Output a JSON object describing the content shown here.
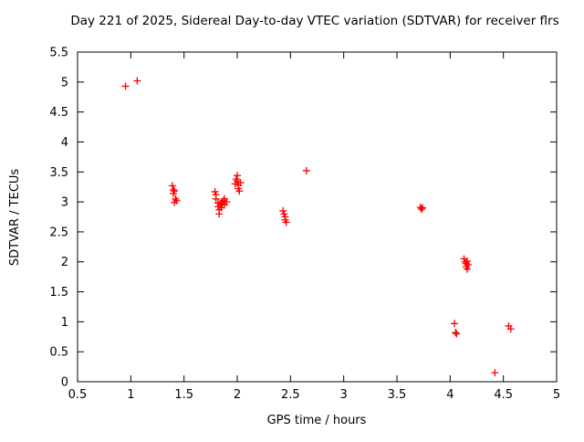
{
  "chart_data": {
    "type": "scatter",
    "title": "Day 221 of 2025, Sidereal Day-to-day VTEC variation (SDTVAR) for receiver flrs",
    "xlabel": "GPS time / hours",
    "ylabel": "SDTVAR / TECUs",
    "xlim": [
      0.5,
      5
    ],
    "ylim": [
      0,
      5.5
    ],
    "xticks": [
      0.5,
      1,
      1.5,
      2,
      2.5,
      3,
      3.5,
      4,
      4.5,
      5
    ],
    "xtick_labels": [
      "0.5",
      "1",
      "1.5",
      "2",
      "2.5",
      "3",
      "3.5",
      "4",
      "4.5",
      "5"
    ],
    "yticks": [
      0,
      0.5,
      1,
      1.5,
      2,
      2.5,
      3,
      3.5,
      4,
      4.5,
      5,
      5.5
    ],
    "ytick_labels": [
      "0",
      "0.5",
      "1",
      "1.5",
      "2",
      "2.5",
      "3",
      "3.5",
      "4",
      "4.5",
      "5",
      "5.5"
    ],
    "grid": false,
    "legend": "none",
    "marker": "plus",
    "marker_color": "#ff0000",
    "axis_color": "#000000",
    "background_color": "#ffffff",
    "series_name": "SDTVAR",
    "points": [
      [
        0.95,
        4.93
      ],
      [
        1.06,
        5.02
      ],
      [
        1.39,
        3.27
      ],
      [
        1.4,
        3.2
      ],
      [
        1.4,
        3.14
      ],
      [
        1.41,
        3.18
      ],
      [
        1.41,
        2.99
      ],
      [
        1.42,
        3.05
      ],
      [
        1.43,
        3.02
      ],
      [
        1.79,
        3.17
      ],
      [
        1.8,
        3.12
      ],
      [
        1.8,
        3.05
      ],
      [
        1.82,
        2.98
      ],
      [
        1.82,
        2.92
      ],
      [
        1.83,
        2.87
      ],
      [
        1.83,
        2.8
      ],
      [
        1.84,
        2.95
      ],
      [
        1.85,
        3.0
      ],
      [
        1.85,
        2.9
      ],
      [
        1.86,
        2.97
      ],
      [
        1.87,
        3.02
      ],
      [
        1.88,
        2.95
      ],
      [
        1.88,
        3.05
      ],
      [
        1.9,
        3.0
      ],
      [
        1.98,
        3.3
      ],
      [
        1.99,
        3.38
      ],
      [
        2.0,
        3.44
      ],
      [
        2.0,
        3.35
      ],
      [
        2.01,
        3.28
      ],
      [
        2.01,
        3.22
      ],
      [
        2.02,
        3.18
      ],
      [
        2.03,
        3.32
      ],
      [
        2.43,
        2.85
      ],
      [
        2.44,
        2.8
      ],
      [
        2.45,
        2.75
      ],
      [
        2.45,
        2.7
      ],
      [
        2.46,
        2.66
      ],
      [
        2.65,
        3.52
      ],
      [
        3.72,
        2.91
      ],
      [
        3.73,
        2.88
      ],
      [
        3.74,
        2.9
      ],
      [
        4.04,
        0.97
      ],
      [
        4.05,
        0.82
      ],
      [
        4.06,
        0.8
      ],
      [
        4.13,
        2.05
      ],
      [
        4.14,
        2.0
      ],
      [
        4.15,
        1.97
      ],
      [
        4.15,
        1.92
      ],
      [
        4.16,
        1.88
      ],
      [
        4.16,
        2.01
      ],
      [
        4.17,
        1.95
      ],
      [
        4.42,
        0.15
      ],
      [
        4.55,
        0.93
      ],
      [
        4.57,
        0.88
      ]
    ]
  }
}
